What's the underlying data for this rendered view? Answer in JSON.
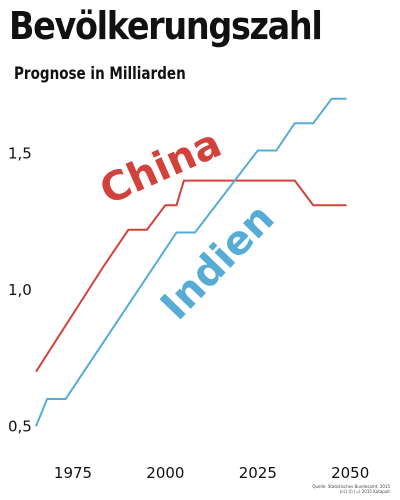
{
  "header": {
    "title": "Bevölkerungszahl",
    "subtitle": "Prognose in Milliarden"
  },
  "source": {
    "line1": "Quelle: Statistisches Bundesamt, 2015",
    "line2": "(cc) (i) (=) 2015 Katapult"
  },
  "chart_data": {
    "type": "line",
    "title": "Bevölkerungszahl",
    "subtitle": "Prognose in Milliarden",
    "xlabel": "",
    "ylabel": "",
    "xlim": [
      1965,
      2054
    ],
    "ylim": [
      0.45,
      1.75
    ],
    "x_ticks": [
      1975,
      2000,
      2025,
      2050
    ],
    "x_tick_labels": [
      "1975",
      "2000",
      "2025",
      "2050"
    ],
    "y_ticks": [
      0.5,
      1.0,
      1.5
    ],
    "y_tick_labels": [
      "0,5",
      "1,0",
      "1,5"
    ],
    "grid": false,
    "legend": "inline labels",
    "series": [
      {
        "name": "China",
        "color": "#d2423a",
        "x": [
          1965,
          1983,
          1990,
          1993,
          1995,
          2000,
          2003,
          2005,
          2035,
          2040,
          2045,
          2049
        ],
        "y": [
          0.7,
          1.08,
          1.22,
          1.22,
          1.22,
          1.31,
          1.31,
          1.4,
          1.4,
          1.31,
          1.31,
          1.31
        ]
      },
      {
        "name": "Indien",
        "color": "#56acd7",
        "x": [
          1965,
          1968,
          1970,
          1973,
          2003,
          2005,
          2008,
          2025,
          2028,
          2030,
          2035,
          2038,
          2040,
          2045,
          2049
        ],
        "y": [
          0.5,
          0.6,
          0.6,
          0.6,
          1.21,
          1.21,
          1.21,
          1.51,
          1.51,
          1.51,
          1.61,
          1.61,
          1.61,
          1.7,
          1.7
        ]
      }
    ]
  }
}
